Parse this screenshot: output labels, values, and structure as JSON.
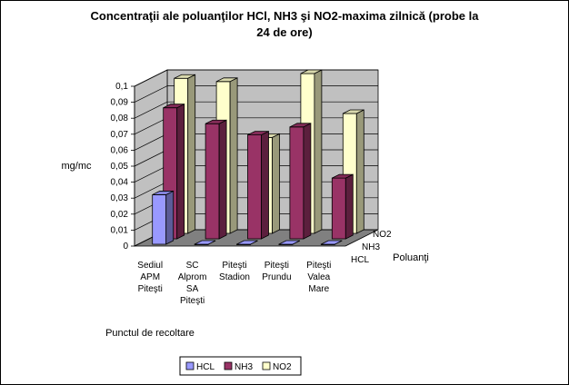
{
  "chart_data": {
    "type": "bar",
    "title_lines": [
      "Concentraţii ale poluanţilor HCl, NH3 şi NO2-maxima zilnică (probe la",
      "24 de ore)"
    ],
    "ylabel": "mg/mc",
    "xlabel": "Punctul de recoltare",
    "zlabel": "Poluanţi",
    "ylim": [
      0,
      0.1
    ],
    "yticks": [
      "0",
      "0,01",
      "0,02",
      "0,03",
      "0,04",
      "0,05",
      "0,06",
      "0,07",
      "0,08",
      "0,09",
      "0,1"
    ],
    "categories": [
      [
        "Sediul",
        "APM",
        "Piteşti"
      ],
      [
        "SC",
        "Alprom",
        "SA",
        "Piteşti"
      ],
      [
        "Piteşti",
        "Stadion"
      ],
      [
        "Piteşti",
        "Prundu"
      ],
      [
        "Piteşti",
        "Valea",
        "Mare"
      ]
    ],
    "series": [
      {
        "name": "HCL",
        "values": [
          0.031,
          0.0,
          0.0,
          0.0,
          0.0
        ],
        "color": "#9999ff"
      },
      {
        "name": "NH3",
        "values": [
          0.082,
          0.072,
          0.065,
          0.07,
          0.038
        ],
        "color": "#993366"
      },
      {
        "name": "NO2",
        "values": [
          0.097,
          0.095,
          0.06,
          0.1,
          0.075
        ],
        "color": "#ffffcc"
      }
    ],
    "depth_labels": [
      "HCL",
      "NH3",
      "NO2"
    ],
    "legend": [
      "HCL",
      "NH3",
      "NO2"
    ],
    "legend_position": "bottom",
    "grid": true,
    "colors": {
      "wall": "#c0c0c0",
      "floor": "#808080"
    }
  }
}
